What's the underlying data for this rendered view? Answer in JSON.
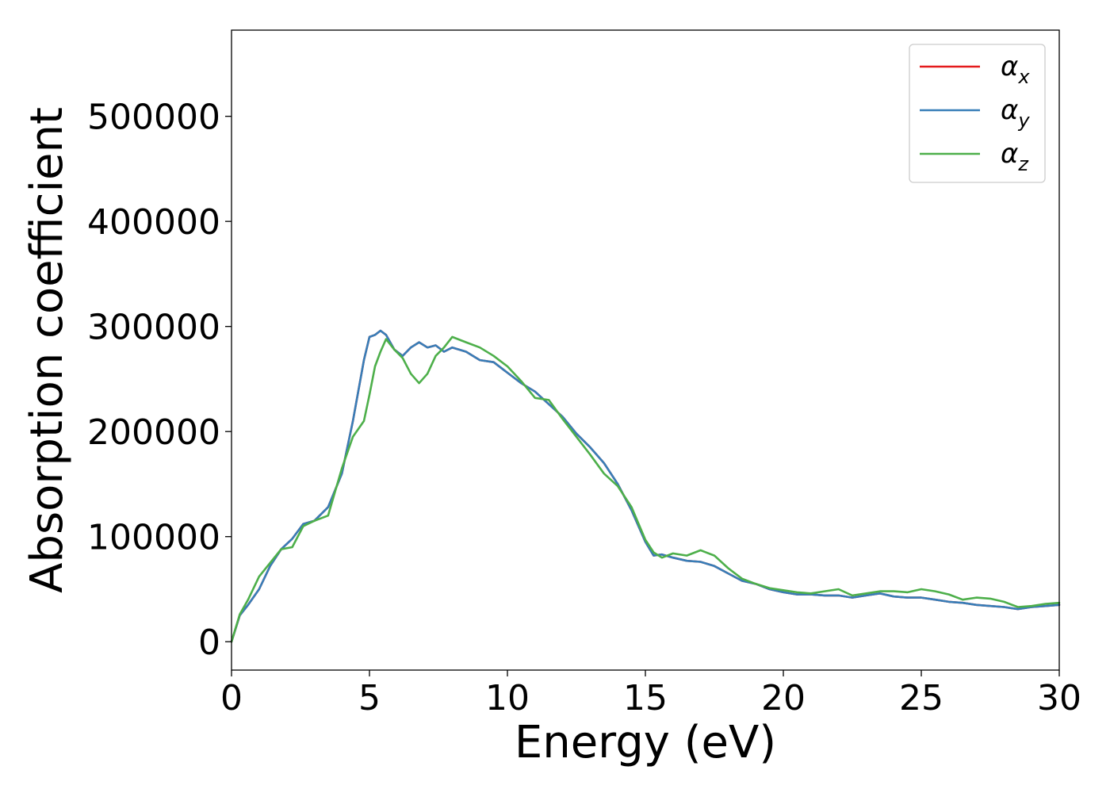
{
  "chart_data": {
    "type": "line",
    "xlabel": "Energy (eV)",
    "ylabel": "Absorption coefficient",
    "xlim": [
      0,
      30
    ],
    "ylim": [
      -27000,
      582000
    ],
    "xticks": [
      0,
      5,
      10,
      15,
      20,
      25,
      30
    ],
    "yticks": [
      0,
      100000,
      200000,
      300000,
      400000,
      500000
    ],
    "grid": false,
    "legend_position": "top-right",
    "series": [
      {
        "name": "αx",
        "legend_base": "α",
        "legend_sub": "x",
        "color": "#e41a1c",
        "x": [
          0,
          0.3,
          0.6,
          1.0,
          1.4,
          1.8,
          2.2,
          2.6,
          3.0,
          3.5,
          4.0,
          4.4,
          4.8,
          5.0,
          5.2,
          5.4,
          5.6,
          5.9,
          6.2,
          6.5,
          6.8,
          7.1,
          7.4,
          7.7,
          8.0,
          8.5,
          9.0,
          9.5,
          10.0,
          10.5,
          11.0,
          11.5,
          12.0,
          12.5,
          13.0,
          13.5,
          14.0,
          14.5,
          15.0,
          15.3,
          15.6,
          16.0,
          16.5,
          17.0,
          17.5,
          18.0,
          18.5,
          19.0,
          19.5,
          20.0,
          20.5,
          21.0,
          21.5,
          22.0,
          22.5,
          23.0,
          23.5,
          24.0,
          24.5,
          25.0,
          25.5,
          26.0,
          26.5,
          27.0,
          27.5,
          28.0,
          28.5,
          29.0,
          29.5,
          30.0
        ],
        "y": [
          0,
          25000,
          35000,
          50000,
          72000,
          88000,
          98000,
          112000,
          115000,
          128000,
          160000,
          210000,
          268000,
          290000,
          292000,
          296000,
          292000,
          278000,
          272000,
          280000,
          285000,
          280000,
          282000,
          276000,
          280000,
          276000,
          268000,
          266000,
          256000,
          246000,
          238000,
          226000,
          214000,
          198000,
          185000,
          170000,
          150000,
          125000,
          95000,
          82000,
          83000,
          80000,
          77000,
          76000,
          72000,
          65000,
          58000,
          55000,
          50000,
          47000,
          45000,
          45000,
          44000,
          44000,
          42000,
          44000,
          46000,
          43000,
          42000,
          42000,
          40000,
          38000,
          37000,
          35000,
          34000,
          33000,
          31000,
          33000,
          34000,
          35000
        ]
      },
      {
        "name": "αy",
        "legend_base": "α",
        "legend_sub": "y",
        "color": "#377eb8",
        "x": [
          0,
          0.3,
          0.6,
          1.0,
          1.4,
          1.8,
          2.2,
          2.6,
          3.0,
          3.5,
          4.0,
          4.4,
          4.8,
          5.0,
          5.2,
          5.4,
          5.6,
          5.9,
          6.2,
          6.5,
          6.8,
          7.1,
          7.4,
          7.7,
          8.0,
          8.5,
          9.0,
          9.5,
          10.0,
          10.5,
          11.0,
          11.5,
          12.0,
          12.5,
          13.0,
          13.5,
          14.0,
          14.5,
          15.0,
          15.3,
          15.6,
          16.0,
          16.5,
          17.0,
          17.5,
          18.0,
          18.5,
          19.0,
          19.5,
          20.0,
          20.5,
          21.0,
          21.5,
          22.0,
          22.5,
          23.0,
          23.5,
          24.0,
          24.5,
          25.0,
          25.5,
          26.0,
          26.5,
          27.0,
          27.5,
          28.0,
          28.5,
          29.0,
          29.5,
          30.0
        ],
        "y": [
          0,
          25000,
          35000,
          50000,
          72000,
          88000,
          98000,
          112000,
          115000,
          128000,
          160000,
          210000,
          268000,
          290000,
          292000,
          296000,
          292000,
          278000,
          272000,
          280000,
          285000,
          280000,
          282000,
          276000,
          280000,
          276000,
          268000,
          266000,
          256000,
          246000,
          238000,
          226000,
          214000,
          198000,
          185000,
          170000,
          150000,
          125000,
          95000,
          82000,
          83000,
          80000,
          77000,
          76000,
          72000,
          65000,
          58000,
          55000,
          50000,
          47000,
          45000,
          45000,
          44000,
          44000,
          42000,
          44000,
          46000,
          43000,
          42000,
          42000,
          40000,
          38000,
          37000,
          35000,
          34000,
          33000,
          31000,
          33000,
          34000,
          35000
        ]
      },
      {
        "name": "αz",
        "legend_base": "α",
        "legend_sub": "z",
        "color": "#4daf4a",
        "x": [
          0,
          0.3,
          0.6,
          1.0,
          1.4,
          1.8,
          2.2,
          2.6,
          3.0,
          3.5,
          4.0,
          4.4,
          4.8,
          5.0,
          5.2,
          5.4,
          5.6,
          5.9,
          6.2,
          6.5,
          6.8,
          7.1,
          7.4,
          7.7,
          8.0,
          8.5,
          9.0,
          9.5,
          10.0,
          10.5,
          11.0,
          11.5,
          12.0,
          12.5,
          13.0,
          13.5,
          14.0,
          14.5,
          15.0,
          15.3,
          15.6,
          16.0,
          16.5,
          17.0,
          17.5,
          18.0,
          18.5,
          19.0,
          19.5,
          20.0,
          20.5,
          21.0,
          21.5,
          22.0,
          22.5,
          23.0,
          23.5,
          24.0,
          24.5,
          25.0,
          25.5,
          26.0,
          26.5,
          27.0,
          27.5,
          28.0,
          28.5,
          29.0,
          29.5,
          30.0
        ],
        "y": [
          0,
          26000,
          40000,
          62000,
          75000,
          88000,
          90000,
          110000,
          115000,
          120000,
          165000,
          195000,
          210000,
          235000,
          262000,
          276000,
          288000,
          278000,
          270000,
          255000,
          246000,
          255000,
          272000,
          280000,
          290000,
          285000,
          280000,
          272000,
          262000,
          248000,
          232000,
          230000,
          212000,
          195000,
          178000,
          160000,
          148000,
          128000,
          97000,
          85000,
          80000,
          84000,
          82000,
          87000,
          82000,
          70000,
          60000,
          55000,
          51000,
          49000,
          47000,
          46000,
          48000,
          50000,
          44000,
          46000,
          48000,
          48000,
          47000,
          50000,
          48000,
          45000,
          40000,
          42000,
          41000,
          38000,
          33000,
          34000,
          36000,
          37000
        ]
      }
    ]
  }
}
